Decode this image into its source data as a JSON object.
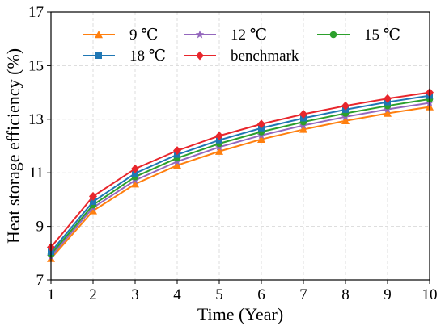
{
  "chart_data": {
    "type": "line",
    "xlabel": "Time (Year)",
    "ylabel": "Heat storage efficiency (%)",
    "xlim": [
      1,
      10
    ],
    "ylim": [
      7,
      17
    ],
    "xticks": [
      1,
      2,
      3,
      4,
      5,
      6,
      7,
      8,
      9,
      10
    ],
    "yticks": [
      7,
      9,
      11,
      13,
      15,
      17
    ],
    "grid": true,
    "legend_position": "top",
    "x": [
      1,
      2,
      3,
      4,
      5,
      6,
      7,
      8,
      9,
      10
    ],
    "series": [
      {
        "name": "9 ℃",
        "color": "#ff7f0e",
        "marker": "triangle",
        "values": [
          7.8,
          9.58,
          10.58,
          11.28,
          11.8,
          12.25,
          12.62,
          12.94,
          13.22,
          13.46
        ]
      },
      {
        "name": "12 ℃",
        "color": "#9467bd",
        "marker": "star",
        "values": [
          7.88,
          9.7,
          10.72,
          11.42,
          11.96,
          12.4,
          12.77,
          13.09,
          13.37,
          13.61
        ]
      },
      {
        "name": "15 ℃",
        "color": "#2ca02c",
        "marker": "circle",
        "values": [
          7.96,
          9.8,
          10.85,
          11.55,
          12.09,
          12.53,
          12.9,
          13.22,
          13.5,
          13.75
        ]
      },
      {
        "name": "18 ℃",
        "color": "#1f77b4",
        "marker": "square",
        "values": [
          8.05,
          9.92,
          10.98,
          11.68,
          12.22,
          12.67,
          13.04,
          13.36,
          13.64,
          13.88
        ]
      },
      {
        "name": "benchmark",
        "color": "#e8262c",
        "marker": "diamond",
        "values": [
          8.22,
          10.12,
          11.15,
          11.83,
          12.38,
          12.82,
          13.19,
          13.5,
          13.77,
          14.0
        ]
      }
    ]
  }
}
